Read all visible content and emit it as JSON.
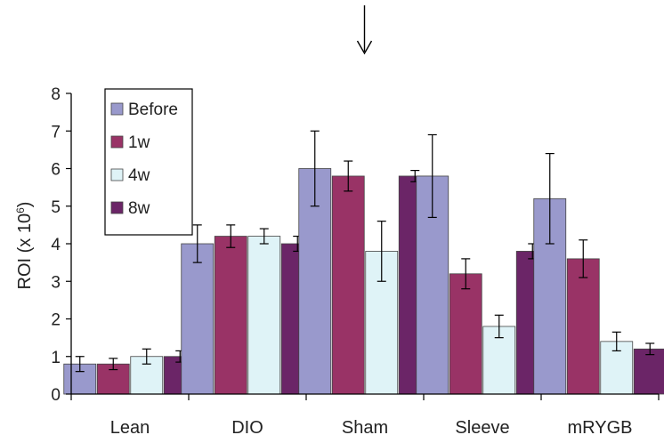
{
  "chart_data": {
    "type": "bar",
    "title": "",
    "xlabel": "",
    "ylabel": "ROI (x 10",
    "ylabel_sup": "6",
    "ylabel_end": ")",
    "ylim": [
      0,
      8
    ],
    "yticks": [
      0,
      1,
      2,
      3,
      4,
      5,
      6,
      7,
      8
    ],
    "categories": [
      "Lean",
      "DIO",
      "Sham",
      "Sleeve",
      "mRYGB"
    ],
    "series": [
      {
        "name": "Before",
        "color": "#9999cc",
        "values": [
          0.8,
          4.0,
          6.0,
          5.8,
          5.2
        ],
        "errors": [
          0.2,
          0.5,
          1.0,
          1.1,
          1.2
        ]
      },
      {
        "name": "1w",
        "color": "#993366",
        "values": [
          0.8,
          4.2,
          5.8,
          3.2,
          3.6
        ],
        "errors": [
          0.15,
          0.3,
          0.4,
          0.4,
          0.5
        ]
      },
      {
        "name": "4w",
        "color": "#dff3f7",
        "values": [
          1.0,
          4.2,
          3.8,
          1.8,
          1.4
        ],
        "errors": [
          0.2,
          0.2,
          0.8,
          0.3,
          0.25
        ]
      },
      {
        "name": "8w",
        "color": "#6b2567",
        "values": [
          1.0,
          4.0,
          5.8,
          3.8,
          1.2
        ],
        "errors": [
          0.15,
          0.2,
          0.15,
          0.2,
          0.15
        ]
      }
    ],
    "annotation": {
      "type": "arrow",
      "points_to": "Sham",
      "direction": "down"
    },
    "legend_position": "top-left",
    "grid": false
  }
}
